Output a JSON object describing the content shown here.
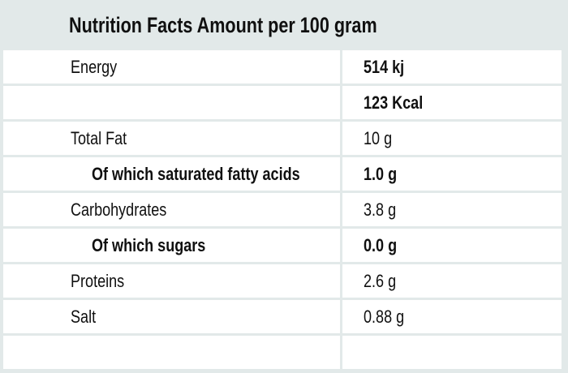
{
  "page": {
    "background_color": "#e2e9e9",
    "row_background_color": "#ffffff",
    "text_color": "#101010"
  },
  "header": {
    "title": "Nutrition Facts Amount per 100 gram"
  },
  "table": {
    "rows": [
      {
        "label": "Energy",
        "value": "514 kj",
        "indent": 1,
        "label_bold": false,
        "value_bold": true
      },
      {
        "label": "",
        "value": "123 Kcal",
        "indent": 1,
        "label_bold": false,
        "value_bold": true
      },
      {
        "label": "Total Fat",
        "value": "10 g",
        "indent": 1,
        "label_bold": false,
        "value_bold": false
      },
      {
        "label": "Of which saturated fatty acids",
        "value": "1.0 g",
        "indent": 2,
        "label_bold": true,
        "value_bold": true
      },
      {
        "label": "Carbohydrates",
        "value": "3.8 g",
        "indent": 1,
        "label_bold": false,
        "value_bold": false
      },
      {
        "label": "Of which sugars",
        "value": "0.0 g",
        "indent": 2,
        "label_bold": true,
        "value_bold": true
      },
      {
        "label": "Proteins",
        "value": "2.6 g",
        "indent": 1,
        "label_bold": false,
        "value_bold": false
      },
      {
        "label": "Salt",
        "value": "0.88 g",
        "indent": 1,
        "label_bold": false,
        "value_bold": false
      },
      {
        "label": "",
        "value": "",
        "indent": 1,
        "label_bold": false,
        "value_bold": false
      }
    ]
  }
}
